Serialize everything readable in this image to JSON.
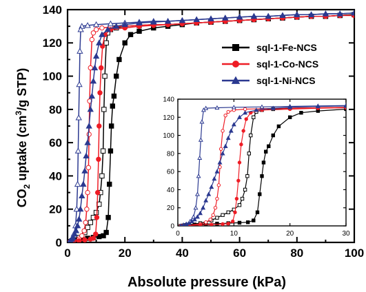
{
  "chart_data": [
    {
      "type": "scatter",
      "xlabel": "Absolute pressure (kPa)",
      "ylabel": {
        "pre": "CO",
        "sub": "2",
        "mid": " uptake (cm",
        "sup": "3",
        "post": "/g STP)"
      },
      "xlim": [
        0,
        100
      ],
      "ylim": [
        0,
        140
      ],
      "xticks": [
        "0",
        "20",
        "40",
        "60",
        "80",
        "100"
      ],
      "yticks": [
        "0",
        "20",
        "40",
        "60",
        "80",
        "100",
        "120",
        "140"
      ],
      "legend_position": "top-right",
      "series": [
        {
          "name": "sql-1-Fe-NCS",
          "color": "#000000",
          "marker": "square",
          "adsorption": [
            [
              0.5,
              0
            ],
            [
              1.5,
              1
            ],
            [
              3,
              1.5
            ],
            [
              5,
              2
            ],
            [
              7,
              2.5
            ],
            [
              9,
              3
            ],
            [
              11,
              3.5
            ],
            [
              12.5,
              4
            ],
            [
              13.5,
              6
            ],
            [
              14.2,
              15
            ],
            [
              14.6,
              35
            ],
            [
              15,
              55
            ],
            [
              15.3,
              70
            ],
            [
              15.7,
              82
            ],
            [
              16.2,
              88
            ],
            [
              17,
              100
            ],
            [
              18,
              110
            ],
            [
              20,
              120
            ],
            [
              22,
              125
            ],
            [
              25,
              127
            ],
            [
              30,
              129
            ],
            [
              35,
              130
            ],
            [
              40,
              131
            ],
            [
              45,
              132
            ],
            [
              50,
              132.5
            ],
            [
              55,
              133
            ],
            [
              60,
              133.5
            ],
            [
              65,
              134
            ],
            [
              70,
              134.5
            ],
            [
              75,
              135
            ],
            [
              80,
              135.5
            ],
            [
              85,
              136
            ],
            [
              90,
              136
            ],
            [
              95,
              136.5
            ],
            [
              100,
              137
            ]
          ],
          "desorption": [
            [
              100,
              137
            ],
            [
              95,
              136.5
            ],
            [
              90,
              136
            ],
            [
              85,
              136
            ],
            [
              80,
              135.5
            ],
            [
              75,
              135
            ],
            [
              70,
              134.5
            ],
            [
              65,
              134
            ],
            [
              60,
              133.5
            ],
            [
              55,
              133
            ],
            [
              50,
              132.5
            ],
            [
              45,
              132
            ],
            [
              40,
              131.5
            ],
            [
              35,
              131
            ],
            [
              30,
              131
            ],
            [
              25,
              130.5
            ],
            [
              20,
              130
            ],
            [
              17,
              129
            ],
            [
              15,
              128
            ],
            [
              14,
              126
            ],
            [
              13.5,
              120
            ],
            [
              13,
              100
            ],
            [
              12.7,
              80
            ],
            [
              12.4,
              55
            ],
            [
              12,
              40
            ],
            [
              11.5,
              30
            ],
            [
              11,
              23
            ],
            [
              10,
              18
            ],
            [
              9,
              15
            ],
            [
              8,
              12
            ],
            [
              7,
              9
            ],
            [
              6,
              6
            ],
            [
              4,
              3
            ],
            [
              2,
              1.5
            ],
            [
              1,
              0.5
            ]
          ]
        },
        {
          "name": "sql-1-Co-NCS",
          "color": "#ee1c25",
          "marker": "circle",
          "adsorption": [
            [
              0.5,
              0
            ],
            [
              2,
              0.5
            ],
            [
              4,
              1
            ],
            [
              6,
              1.5
            ],
            [
              8,
              2
            ],
            [
              9,
              2.5
            ],
            [
              9.8,
              5
            ],
            [
              10.2,
              15
            ],
            [
              10.5,
              30
            ],
            [
              10.8,
              50
            ],
            [
              11,
              70
            ],
            [
              11.3,
              90
            ],
            [
              11.7,
              105
            ],
            [
              12.2,
              118
            ],
            [
              13,
              125
            ],
            [
              15,
              128
            ],
            [
              20,
              129
            ],
            [
              25,
              130
            ],
            [
              30,
              130.5
            ],
            [
              35,
              131
            ],
            [
              40,
              131.5
            ],
            [
              45,
              132
            ],
            [
              50,
              132.5
            ],
            [
              55,
              133
            ],
            [
              60,
              133.5
            ],
            [
              65,
              134
            ],
            [
              70,
              134.5
            ],
            [
              75,
              135
            ],
            [
              80,
              135.5
            ],
            [
              85,
              136
            ],
            [
              90,
              136
            ],
            [
              95,
              136.5
            ],
            [
              100,
              136.5
            ]
          ],
          "desorption": [
            [
              100,
              136.5
            ],
            [
              95,
              136.5
            ],
            [
              90,
              136
            ],
            [
              85,
              136
            ],
            [
              80,
              135.5
            ],
            [
              75,
              135
            ],
            [
              70,
              134.5
            ],
            [
              65,
              134
            ],
            [
              60,
              133.5
            ],
            [
              55,
              133
            ],
            [
              50,
              132.5
            ],
            [
              45,
              132
            ],
            [
              40,
              131.5
            ],
            [
              35,
              131
            ],
            [
              30,
              131
            ],
            [
              25,
              130.5
            ],
            [
              20,
              130
            ],
            [
              15,
              129.5
            ],
            [
              12,
              129
            ],
            [
              10,
              128
            ],
            [
              9,
              126
            ],
            [
              8.5,
              122
            ],
            [
              8,
              105
            ],
            [
              7.7,
              85
            ],
            [
              7.5,
              65
            ],
            [
              7.3,
              45
            ],
            [
              7,
              30
            ],
            [
              6.7,
              20
            ],
            [
              6.3,
              12
            ],
            [
              5.8,
              7
            ],
            [
              5,
              4
            ],
            [
              4,
              2
            ],
            [
              2,
              1
            ],
            [
              1,
              0.5
            ]
          ]
        },
        {
          "name": "sql-1-Ni-NCS",
          "color": "#2b3990",
          "marker": "triangle",
          "adsorption": [
            [
              0.5,
              0
            ],
            [
              1,
              1
            ],
            [
              1.5,
              2
            ],
            [
              2,
              3
            ],
            [
              2.5,
              5
            ],
            [
              3,
              7
            ],
            [
              3.5,
              10
            ],
            [
              4,
              14
            ],
            [
              4.5,
              20
            ],
            [
              5,
              28
            ],
            [
              5.5,
              35
            ],
            [
              6,
              43
            ],
            [
              6.5,
              52
            ],
            [
              7,
              60
            ],
            [
              7.5,
              70
            ],
            [
              8,
              80
            ],
            [
              8.5,
              88
            ],
            [
              9,
              97
            ],
            [
              9.5,
              105
            ],
            [
              10,
              112
            ],
            [
              11,
              120
            ],
            [
              12,
              125
            ],
            [
              14,
              128
            ],
            [
              17,
              130
            ],
            [
              20,
              131
            ],
            [
              25,
              132
            ],
            [
              30,
              132.5
            ],
            [
              35,
              133
            ],
            [
              40,
              133.5
            ],
            [
              45,
              134
            ],
            [
              50,
              134.5
            ],
            [
              55,
              135
            ],
            [
              60,
              135.5
            ],
            [
              65,
              136
            ],
            [
              70,
              136
            ],
            [
              75,
              136.5
            ],
            [
              80,
              137
            ],
            [
              85,
              137
            ],
            [
              90,
              137.5
            ],
            [
              95,
              137.5
            ],
            [
              100,
              138
            ]
          ],
          "desorption": [
            [
              100,
              138
            ],
            [
              95,
              137.5
            ],
            [
              90,
              137.5
            ],
            [
              85,
              137
            ],
            [
              80,
              137
            ],
            [
              75,
              136.5
            ],
            [
              70,
              136
            ],
            [
              65,
              136
            ],
            [
              60,
              135.5
            ],
            [
              55,
              135
            ],
            [
              50,
              134.5
            ],
            [
              45,
              134
            ],
            [
              40,
              133.5
            ],
            [
              35,
              133
            ],
            [
              30,
              133
            ],
            [
              25,
              132.5
            ],
            [
              20,
              132
            ],
            [
              15,
              131.5
            ],
            [
              10,
              131
            ],
            [
              7,
              130.5
            ],
            [
              5,
              130
            ],
            [
              4.6,
              128
            ],
            [
              4.3,
              115
            ],
            [
              4.1,
              95
            ],
            [
              3.9,
              75
            ],
            [
              3.7,
              55
            ],
            [
              3.5,
              35
            ],
            [
              3.2,
              20
            ],
            [
              2.8,
              10
            ],
            [
              2.2,
              5
            ],
            [
              1.5,
              2
            ],
            [
              1,
              1
            ],
            [
              0.5,
              0
            ]
          ]
        }
      ]
    },
    {
      "type": "scatter",
      "inset": true,
      "xlim": [
        0,
        30
      ],
      "ylim": [
        0,
        140
      ],
      "xticks": [
        "0",
        "10",
        "20",
        "30"
      ],
      "yticks": [
        "0",
        "20",
        "40",
        "60",
        "80",
        "100",
        "120",
        "140"
      ],
      "series_ref": "same as main chart, x range 0–30 kPa"
    }
  ]
}
